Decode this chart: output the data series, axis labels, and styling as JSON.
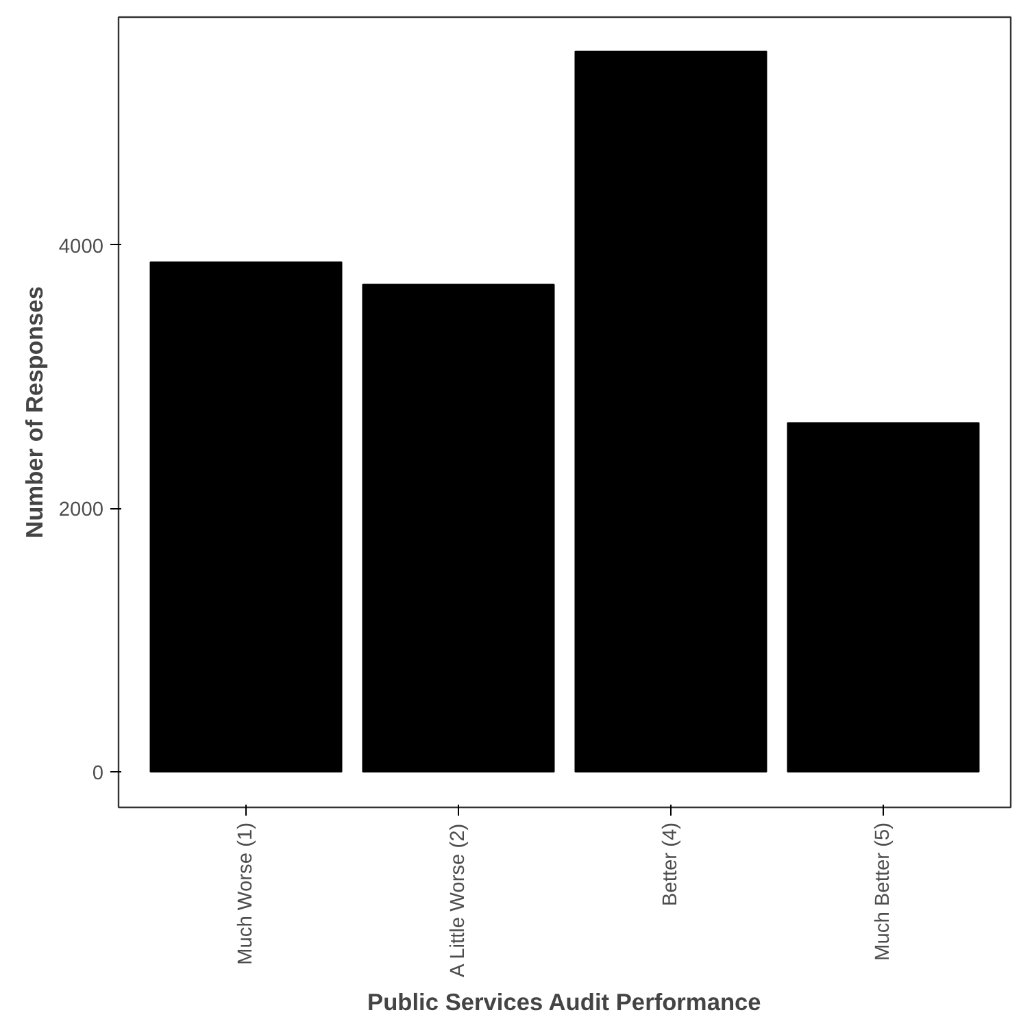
{
  "chart_data": {
    "type": "bar",
    "xlabel": "Public Services Audit Performance",
    "ylabel": "Number of Responses",
    "categories": [
      "Much Worse (1)",
      "A Little Worse (2)",
      "Better (4)",
      "Much Better (5)"
    ],
    "values": [
      3870,
      3700,
      5470,
      2650
    ],
    "color": "#000000",
    "ylim": [
      -270,
      5730
    ],
    "yticks": [
      0,
      2000,
      4000
    ],
    "grid": false
  }
}
